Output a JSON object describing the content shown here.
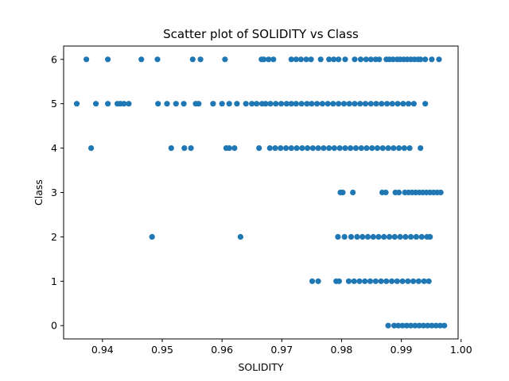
{
  "chart_data": {
    "type": "scatter",
    "title": "Scatter plot of SOLIDITY vs Class",
    "xlabel": "SOLIDITY",
    "ylabel": "Class",
    "xlim": [
      0.9335,
      0.9995
    ],
    "ylim": [
      -0.3,
      6.3
    ],
    "xticks": [
      0.94,
      0.95,
      0.96,
      0.97,
      0.98,
      0.99,
      1.0
    ],
    "xtick_labels": [
      "0.94",
      "0.95",
      "0.96",
      "0.97",
      "0.98",
      "0.99",
      "1.00"
    ],
    "yticks": [
      0,
      1,
      2,
      3,
      4,
      5,
      6
    ],
    "ytick_labels": [
      "0",
      "1",
      "2",
      "3",
      "4",
      "5",
      "6"
    ],
    "grid": false,
    "color": "#1f77b4",
    "series": [
      {
        "values_by_class": [
          {
            "class": 6,
            "x": [
              0.9373,
              0.9409,
              0.9465,
              0.9492,
              0.9551,
              0.9564,
              0.9605,
              0.9666,
              0.967,
              0.9678,
              0.9686,
              0.9716,
              0.9724,
              0.9732,
              0.9741,
              0.9749,
              0.9765,
              0.9779,
              0.9787,
              0.9795,
              0.9806,
              0.9822,
              0.9832,
              0.9841,
              0.9849,
              0.9857,
              0.9863,
              0.9875,
              0.988,
              0.9886,
              0.9893,
              0.9898,
              0.9904,
              0.991,
              0.9916,
              0.9922,
              0.9928,
              0.9932,
              0.994,
              0.9951,
              0.9963
            ]
          },
          {
            "class": 5,
            "x": [
              0.9357,
              0.9389,
              0.9409,
              0.9425,
              0.943,
              0.9436,
              0.9444,
              0.9493,
              0.9508,
              0.9523,
              0.9536,
              0.9556,
              0.9561,
              0.9585,
              0.96,
              0.9612,
              0.9625,
              0.964,
              0.965,
              0.9658,
              0.9667,
              0.9673,
              0.9681,
              0.969,
              0.9699,
              0.9708,
              0.9716,
              0.9724,
              0.9733,
              0.9742,
              0.975,
              0.9759,
              0.9768,
              0.9777,
              0.9786,
              0.9795,
              0.9804,
              0.9813,
              0.9822,
              0.9831,
              0.984,
              0.9849,
              0.9858,
              0.9867,
              0.9876,
              0.9885,
              0.9894,
              0.9903,
              0.9912,
              0.9921,
              0.994
            ]
          },
          {
            "class": 4,
            "x": [
              0.9381,
              0.9515,
              0.9537,
              0.9548,
              0.9607,
              0.9612,
              0.9621,
              0.9662,
              0.968,
              0.9689,
              0.9698,
              0.9707,
              0.9716,
              0.9725,
              0.9734,
              0.9743,
              0.9752,
              0.9761,
              0.977,
              0.9779,
              0.9788,
              0.9797,
              0.9806,
              0.9815,
              0.9824,
              0.9833,
              0.9842,
              0.9851,
              0.986,
              0.9869,
              0.9878,
              0.9887,
              0.9896,
              0.9905,
              0.9914,
              0.9932
            ]
          },
          {
            "class": 3,
            "x": [
              0.9798,
              0.9802,
              0.9819,
              0.9868,
              0.9874,
              0.989,
              0.9896,
              0.9906,
              0.9912,
              0.9918,
              0.9924,
              0.993,
              0.9936,
              0.9942,
              0.9948,
              0.9954,
              0.996,
              0.9966
            ]
          },
          {
            "class": 2,
            "x": [
              0.9483,
              0.9631,
              0.9794,
              0.9805,
              0.9816,
              0.9826,
              0.9835,
              0.9844,
              0.9853,
              0.9862,
              0.9871,
              0.988,
              0.9889,
              0.9898,
              0.9907,
              0.9916,
              0.9925,
              0.9934,
              0.9943,
              0.9948
            ]
          },
          {
            "class": 1,
            "x": [
              0.9751,
              0.9761,
              0.9791,
              0.9796,
              0.9812,
              0.9821,
              0.983,
              0.9839,
              0.9848,
              0.9857,
              0.9866,
              0.9875,
              0.9884,
              0.9893,
              0.9902,
              0.9911,
              0.992,
              0.9929,
              0.9938,
              0.9946
            ]
          },
          {
            "class": 0,
            "x": [
              0.9878,
              0.9888,
              0.9895,
              0.9902,
              0.9909,
              0.9916,
              0.9923,
              0.993,
              0.9937,
              0.9944,
              0.9951,
              0.9958,
              0.9965,
              0.9972
            ]
          }
        ]
      }
    ]
  }
}
